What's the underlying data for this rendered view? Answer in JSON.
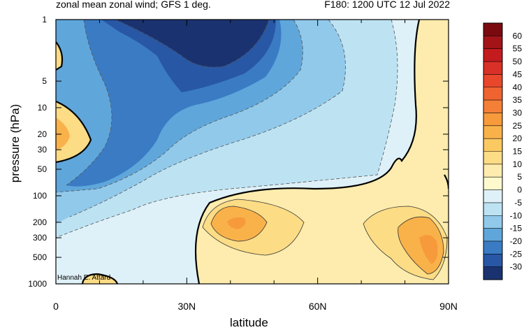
{
  "chart_data": {
    "type": "contour",
    "title_left": "zonal mean zonal wind; GFS 1 deg.",
    "title_right": "F180: 1200 UTC 12 Jul 2022",
    "xlabel": "latitude",
    "ylabel": "pressure (hPa)",
    "x_ticks": [
      "0",
      "30N",
      "60N",
      "90N"
    ],
    "x_range": [
      0,
      90
    ],
    "y_ticks": [
      "1",
      "5",
      "10",
      "20",
      "30",
      "50",
      "100",
      "200",
      "300",
      "500",
      "1000"
    ],
    "y_tick_values": [
      1,
      5,
      10,
      20,
      30,
      50,
      100,
      200,
      300,
      500,
      1000
    ],
    "y_range": [
      1,
      1000
    ],
    "y_scale": "log",
    "credit": "Hannah E. Attard",
    "colorbar": {
      "levels": [
        "60",
        "55",
        "50",
        "45",
        "40",
        "35",
        "30",
        "25",
        "20",
        "15",
        "10",
        "5",
        "0",
        "-5",
        "-10",
        "-15",
        "-20",
        "-25",
        "-30"
      ],
      "colors": [
        "#7a0a10",
        "#a31419",
        "#c41b1f",
        "#d93027",
        "#e8472b",
        "#ef6330",
        "#f47f36",
        "#f79a3c",
        "#f9b24a",
        "#fbc962",
        "#fcdc85",
        "#fdecad",
        "#feface",
        "#dff1f8",
        "#bde3f3",
        "#91c9ea",
        "#5fa6db",
        "#3a7bc4",
        "#2857a6",
        "#1a3370"
      ]
    },
    "features": [
      {
        "name": "polar-night-easterlies",
        "sign": "negative",
        "min_value": -30,
        "lat": [
          15,
          50
        ],
        "pressure": [
          1,
          3
        ]
      },
      {
        "name": "equatorial-westerly",
        "sign": "positive",
        "max_value": 20,
        "lat": [
          0,
          9
        ],
        "pressure": [
          10,
          40
        ]
      },
      {
        "name": "subtropical-jet",
        "sign": "positive",
        "max_value": 25,
        "lat": [
          38,
          45
        ],
        "pressure": [
          170,
          250
        ]
      },
      {
        "name": "high-latitude-jet",
        "sign": "positive",
        "max_value": 25,
        "lat": [
          80,
          90
        ],
        "pressure": [
          300,
          500
        ]
      }
    ]
  }
}
